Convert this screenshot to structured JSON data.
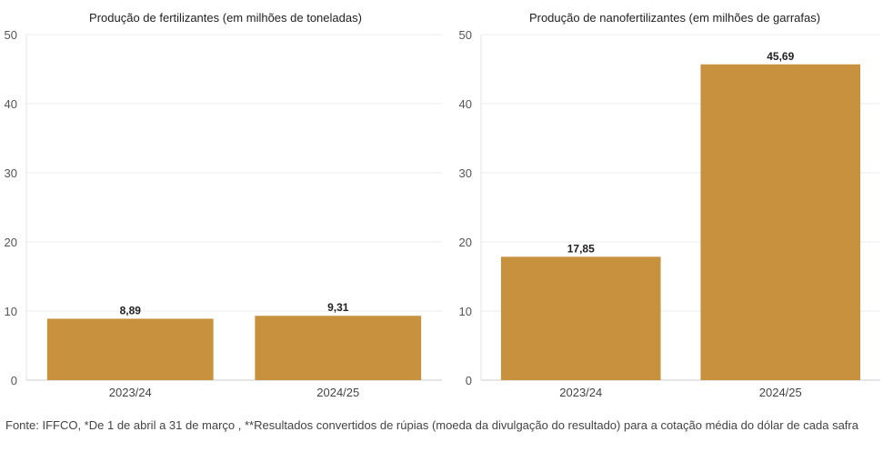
{
  "chart_data": [
    {
      "type": "bar",
      "title": "Produção de fertilizantes (em milhões de toneladas)",
      "categories": [
        "2023/24",
        "2024/25"
      ],
      "values": [
        8.89,
        9.31
      ],
      "value_labels": [
        "8,89",
        "9,31"
      ],
      "ylim": [
        0,
        50
      ],
      "yticks": [
        "0",
        "10",
        "20",
        "30",
        "40",
        "50"
      ],
      "xlabel": "",
      "ylabel": "",
      "grid": true,
      "bar_color": "#C8913E"
    },
    {
      "type": "bar",
      "title": "Produção de nanofertilizantes (em milhões de garrafas)",
      "categories": [
        "2023/24",
        "2024/25"
      ],
      "values": [
        17.85,
        45.69
      ],
      "value_labels": [
        "17,85",
        "45,69"
      ],
      "ylim": [
        0,
        50
      ],
      "yticks": [
        "0",
        "10",
        "20",
        "30",
        "40",
        "50"
      ],
      "xlabel": "",
      "ylabel": "",
      "grid": true,
      "bar_color": "#C8913E"
    }
  ],
  "footer": {
    "source": "Fonte: IFFCO, *De 1 de abril a 31 de março , **Resultados convertidos de rúpias (moeda da divulgação do resultado) para a cotação média do dólar de cada safra"
  }
}
